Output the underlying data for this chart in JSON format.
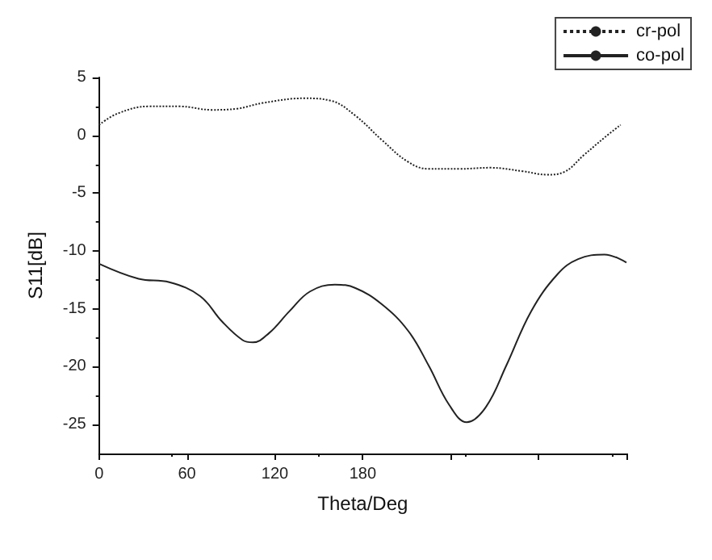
{
  "chart_data": {
    "type": "line",
    "xlabel": "Theta/Deg",
    "ylabel": "S11[dB]",
    "xlim": [
      0,
      360
    ],
    "ylim": [
      -27.5,
      5
    ],
    "xticks": [
      0,
      60,
      120,
      180,
      {
        "value": 240,
        "label": null
      },
      {
        "value": 300,
        "label": null
      },
      {
        "value": 360,
        "label": null
      }
    ],
    "yticks": [
      -25,
      -20,
      -15,
      -10,
      -5,
      0,
      5
    ],
    "grid": false,
    "legend": "top right",
    "marker": "none",
    "series": [
      {
        "name": "cr-pol",
        "color": "#222222",
        "line_style": "dotted",
        "x": [
          0,
          13,
          34,
          55,
          77,
          94,
          112,
          140,
          158,
          175,
          193,
          211,
          225,
          246,
          267,
          289,
          306,
          317,
          331,
          345,
          356
        ],
        "values": [
          0.9,
          1.9,
          2.5,
          2.5,
          2.2,
          2.3,
          2.8,
          3.2,
          3.0,
          1.7,
          -0.4,
          -2.3,
          -2.9,
          -2.9,
          -2.8,
          -3.1,
          -3.4,
          -3.2,
          -1.7,
          -0.2,
          0.9
        ]
      },
      {
        "name": "co-pol",
        "color": "#222222",
        "line_style": "solid",
        "x": [
          0,
          27,
          48,
          69,
          84,
          98,
          105,
          116,
          130,
          144,
          161,
          175,
          193,
          211,
          225,
          239,
          251,
          264,
          278,
          295,
          313,
          327,
          345,
          360
        ],
        "values": [
          -11.1,
          -12.4,
          -12.7,
          -13.9,
          -16.1,
          -17.7,
          -17.9,
          -17.1,
          -15.2,
          -13.5,
          -12.9,
          -13.2,
          -14.6,
          -16.9,
          -19.9,
          -23.3,
          -24.8,
          -23.5,
          -19.9,
          -15.2,
          -12.0,
          -10.7,
          -10.3,
          -11.0
        ]
      }
    ]
  }
}
